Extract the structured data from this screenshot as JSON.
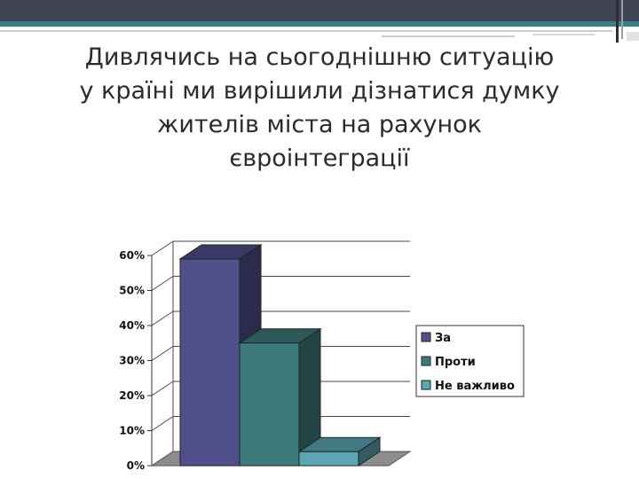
{
  "slide": {
    "title_lines": [
      "Дивлячись на сьогоднішню ситуацію",
      "у країні ми вирішили дізнатися думку",
      "жителів міста на рахунок",
      "євроінтеграції"
    ]
  },
  "chart_data": {
    "type": "bar",
    "style": "3d",
    "title": "",
    "xlabel": "",
    "ylabel": "",
    "categories": [
      ""
    ],
    "series": [
      {
        "name": "За",
        "values": [
          0.59
        ],
        "color": "#4f4f8c"
      },
      {
        "name": "Проти",
        "values": [
          0.35
        ],
        "color": "#3d7b7b"
      },
      {
        "name": "Не важливо",
        "values": [
          0.04
        ],
        "color": "#5aa6b3"
      }
    ],
    "ylim": [
      0,
      0.6
    ],
    "yticks": [
      0,
      0.1,
      0.2,
      0.3,
      0.4,
      0.5,
      0.6
    ],
    "ytick_labels": [
      "0%",
      "10%",
      "20%",
      "30%",
      "40%",
      "50%",
      "60%"
    ],
    "grid": true,
    "legend_position": "right"
  }
}
